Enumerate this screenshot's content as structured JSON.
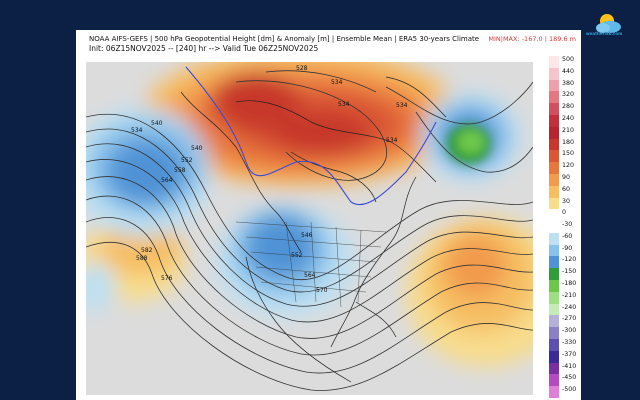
{
  "header": {
    "line1": "NOAA AIFS-GEFS | 500 hPa Geopotential Height [dm] & Anomaly [m] | Ensemble Mean | ERA5 30-years Climate",
    "line2": "Init: 06Z15NOV2025 -- [240] hr --> Valid Tue 06Z25NOV2025",
    "minmax": "MIN|MAX: -167.0 | 189.6 m"
  },
  "logo": {
    "text": "weatherlab.com",
    "icon": "sun-cloud-icon"
  },
  "colorbar": {
    "labels": [
      "500",
      "440",
      "380",
      "320",
      "280",
      "240",
      "210",
      "180",
      "150",
      "120",
      "90",
      "60",
      "30",
      "0",
      "-30",
      "-60",
      "-90",
      "-120",
      "-150",
      "-180",
      "-210",
      "-240",
      "-270",
      "-300",
      "-330",
      "-370",
      "-410",
      "-450",
      "-500"
    ],
    "colors": [
      "#fde5e8",
      "#f7c4cb",
      "#eea0aa",
      "#e27884",
      "#d2505e",
      "#c2303e",
      "#b7232e",
      "#c7372b",
      "#da5634",
      "#e8773e",
      "#f29a4e",
      "#f6bd62",
      "#f8dc8c",
      "#ffffff",
      "#ffffff",
      "#bde0f3",
      "#88c1ea",
      "#4f93d6",
      "#2f9d3a",
      "#6dc74b",
      "#9fdf83",
      "#c6ecb6",
      "#b3b0da",
      "#8a80c6",
      "#5c4fb0",
      "#3b2a96",
      "#7a2f9e",
      "#b64ac0",
      "#e07fd8"
    ]
  },
  "map": {
    "contour_labels": [
      "528",
      "534",
      "534",
      "540",
      "534",
      "534",
      "552",
      "558",
      "564",
      "546",
      "552",
      "564",
      "582",
      "588",
      "540",
      "534",
      "570",
      "576"
    ]
  }
}
